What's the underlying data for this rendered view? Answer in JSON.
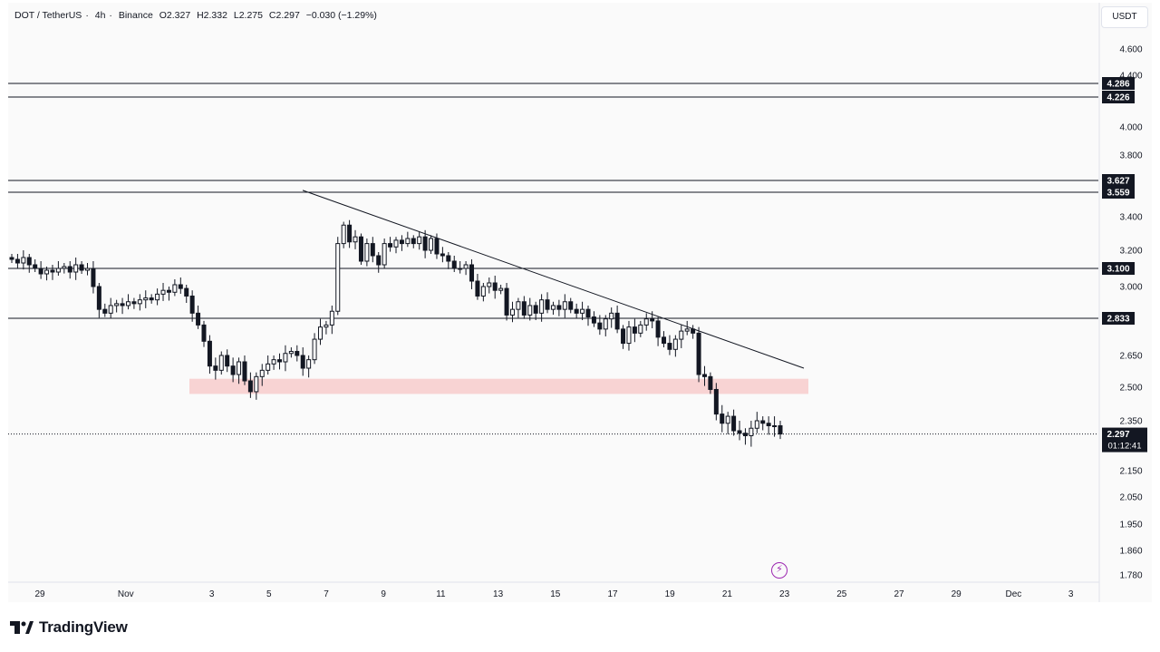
{
  "header": {
    "symbol": "DOT / TetherUS",
    "interval": "4h",
    "exchange": "Binance",
    "open": "O2.327",
    "high": "H2.332",
    "low": "L2.275",
    "close": "C2.297",
    "change": "−0.030 (−1.29%)"
  },
  "currency_label": "USDT",
  "logo_text": "TradingView",
  "icons": {
    "flash": "lightning-icon",
    "logo": "tradingview-logo-icon"
  },
  "colors": {
    "up": "#131722",
    "down": "#131722",
    "zone": "#f7c6c6",
    "label_bg": "#131722",
    "accent": "#9c27b0"
  },
  "chart_data": {
    "type": "candlestick",
    "y_axis": {
      "range": [
        1.74,
        4.82
      ],
      "ticks": [
        "4.600",
        "4.400",
        "4.000",
        "3.800",
        "3.400",
        "3.200",
        "3.000",
        "2.650",
        "2.500",
        "2.350",
        "2.150",
        "2.050",
        "1.950",
        "1.860",
        "1.780"
      ]
    },
    "x_axis": {
      "ticks": [
        "29",
        "Nov",
        "3",
        "5",
        "7",
        "9",
        "11",
        "13",
        "15",
        "17",
        "19",
        "21",
        "23",
        "25",
        "27",
        "29",
        "Dec",
        "3"
      ]
    },
    "price_levels": [
      4.286,
      4.226,
      3.627,
      3.559,
      3.1,
      2.833
    ],
    "current_price": {
      "value": "2.297",
      "countdown": "01:12:41"
    },
    "support_zone": {
      "from_date": "Nov 4",
      "to_date": "Nov 25",
      "low": 2.47,
      "high": 2.54
    },
    "trendline": [
      {
        "date": "Nov 7.2",
        "price": 3.57
      },
      {
        "date": "Nov 24.8",
        "price": 2.59
      }
    ],
    "candles_close": [
      3.15,
      3.13,
      3.16,
      3.12,
      3.1,
      3.07,
      3.09,
      3.08,
      3.1,
      3.11,
      3.08,
      3.12,
      3.09,
      3.1,
      3.0,
      2.88,
      2.86,
      2.9,
      2.91,
      2.9,
      2.92,
      2.91,
      2.93,
      2.94,
      2.93,
      2.96,
      2.98,
      2.97,
      3.01,
      2.99,
      2.95,
      2.86,
      2.8,
      2.72,
      2.6,
      2.58,
      2.65,
      2.6,
      2.56,
      2.62,
      2.53,
      2.48,
      2.55,
      2.58,
      2.61,
      2.63,
      2.62,
      2.66,
      2.67,
      2.65,
      2.59,
      2.63,
      2.73,
      2.79,
      2.8,
      2.87,
      3.24,
      3.35,
      3.25,
      3.28,
      3.14,
      3.24,
      3.17,
      3.12,
      3.24,
      3.22,
      3.26,
      3.24,
      3.27,
      3.24,
      3.28,
      3.2,
      3.27,
      3.18,
      3.17,
      3.14,
      3.1,
      3.1,
      3.12,
      3.03,
      2.95,
      3.0,
      3.02,
      2.98,
      2.99,
      2.85,
      2.88,
      2.92,
      2.85,
      2.9,
      2.86,
      2.93,
      2.88,
      2.9,
      2.88,
      2.92,
      2.88,
      2.86,
      2.88,
      2.84,
      2.81,
      2.78,
      2.83,
      2.86,
      2.78,
      2.71,
      2.79,
      2.76,
      2.8,
      2.83,
      2.82,
      2.74,
      2.71,
      2.68,
      2.73,
      2.77,
      2.78,
      2.76,
      2.56,
      2.55,
      2.49,
      2.38,
      2.34,
      2.37,
      2.31,
      2.3,
      2.29,
      2.32,
      2.35,
      2.34,
      2.33,
      2.33,
      2.297
    ]
  }
}
